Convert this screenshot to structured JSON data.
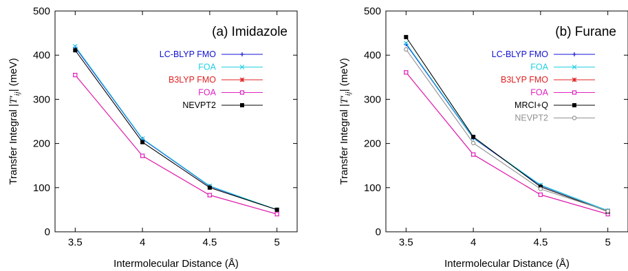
{
  "figure": {
    "ylabel_prefix": "Transfer Integral |",
    "ylabel_symbol": "T",
    "ylabel_sub": "ij",
    "ylabel_suffix": "| (meV)"
  },
  "chart_data": [
    {
      "type": "line",
      "title": "(a) Imidazole",
      "xlabel": "Intermolecular Distance (Å)",
      "ylabel": "Transfer Integral |T'ij| (meV)",
      "xlim": [
        3.35,
        5.15
      ],
      "ylim": [
        0,
        500
      ],
      "xticks": [
        3.5,
        4,
        4.5,
        5
      ],
      "xtick_labels": [
        "3.5",
        "4",
        "4.5",
        "5"
      ],
      "yticks": [
        0,
        100,
        200,
        300,
        400,
        500
      ],
      "ytick_labels": [
        "0",
        "100",
        "200",
        "300",
        "400",
        "500"
      ],
      "grid": false,
      "legend_position": "right",
      "x": [
        3.5,
        4,
        4.5,
        5
      ],
      "series": [
        {
          "name": "LC-BLYP FMO",
          "values": [
            418,
            210,
            103,
            50
          ],
          "color": "#1010d0",
          "marker": "plus"
        },
        {
          "name": "FOA",
          "values": [
            420,
            211,
            104,
            50
          ],
          "color": "#20d0e0",
          "marker": "cross"
        },
        {
          "name": "B3LYP FMO",
          "values": [
            355,
            172,
            83,
            40
          ],
          "color": "#e02020",
          "marker": "star"
        },
        {
          "name": "FOA",
          "values": [
            355,
            172,
            83,
            40
          ],
          "color": "#e020c0",
          "marker": "square-open"
        },
        {
          "name": "NEVPT2",
          "values": [
            411,
            203,
            100,
            50
          ],
          "color": "#000000",
          "marker": "square"
        }
      ]
    },
    {
      "type": "line",
      "title": "(b) Furane",
      "xlabel": "Intermolecular Distance (Å)",
      "ylabel": "Transfer Integral |T'ij| (meV)",
      "xlim": [
        3.35,
        5.15
      ],
      "ylim": [
        0,
        500
      ],
      "xticks": [
        3.5,
        4,
        4.5,
        5
      ],
      "xtick_labels": [
        "3.5",
        "4",
        "4.5",
        "5"
      ],
      "yticks": [
        0,
        100,
        200,
        300,
        400,
        500
      ],
      "ytick_labels": [
        "0",
        "100",
        "200",
        "300",
        "400",
        "500"
      ],
      "grid": false,
      "legend_position": "right",
      "x": [
        3.5,
        4,
        4.5,
        5
      ],
      "series": [
        {
          "name": "LC-BLYP FMO",
          "values": [
            425,
            212,
            105,
            48
          ],
          "color": "#1010d0",
          "marker": "plus"
        },
        {
          "name": "FOA",
          "values": [
            427,
            213,
            106,
            48
          ],
          "color": "#20d0e0",
          "marker": "cross"
        },
        {
          "name": "B3LYP FMO",
          "values": [
            361,
            175,
            84,
            40
          ],
          "color": "#e02020",
          "marker": "star"
        },
        {
          "name": "FOA",
          "values": [
            361,
            175,
            84,
            40
          ],
          "color": "#e020c0",
          "marker": "square-open"
        },
        {
          "name": "MRCI+Q",
          "values": [
            441,
            215,
            102,
            46
          ],
          "color": "#000000",
          "marker": "square"
        },
        {
          "name": "NEVPT2",
          "values": [
            413,
            201,
            97,
            47
          ],
          "color": "#909090",
          "marker": "circle-open"
        }
      ]
    }
  ]
}
